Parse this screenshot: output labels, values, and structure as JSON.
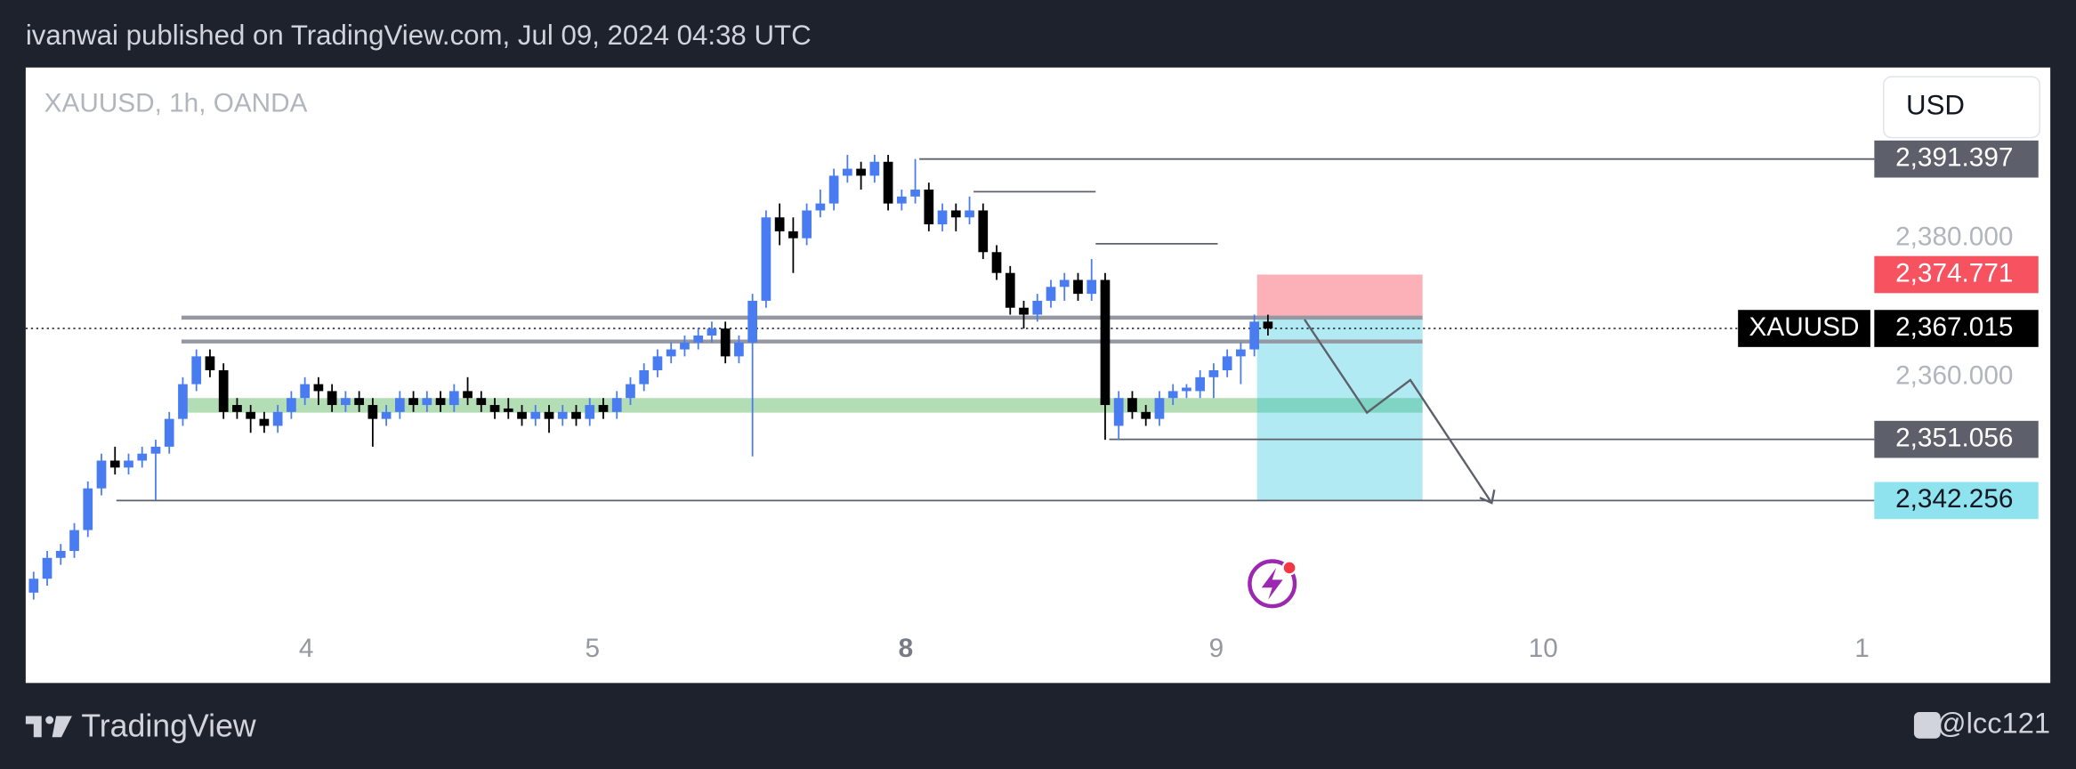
{
  "header": {
    "text": "ivanwai published on TradingView.com, Jul 09, 2024 04:38 UTC"
  },
  "footer": {
    "brand": "TradingView",
    "author": "@lcc121"
  },
  "chart_data": {
    "type": "candlestick",
    "title": "XAUUSD, 1h, OANDA",
    "currency": "USD",
    "up_color": "#4a7cf1",
    "down_color": "#000000",
    "grid": false,
    "xlim": [
      -0.585,
      135.61
    ],
    "ylim": [
      2324.76,
      2404.57
    ],
    "xticks": [
      {
        "value": 20.1,
        "label": "4"
      },
      {
        "value": 41.2,
        "label": "5"
      },
      {
        "value": 64.3,
        "label": "8"
      },
      {
        "value": 87.2,
        "label": "9"
      },
      {
        "value": 111.3,
        "label": "10"
      },
      {
        "value": 134.8,
        "label": "1"
      }
    ],
    "yticks": [
      {
        "value": 2380,
        "label": "2,380.000"
      },
      {
        "value": 2360,
        "label": "2,360.000"
      }
    ],
    "open": [
      2329,
      2331,
      2334,
      2335,
      2338,
      2344,
      2348,
      2347,
      2348,
      2349,
      2350,
      2354,
      2359,
      2363,
      2361,
      2356,
      2355,
      2354,
      2353,
      2355,
      2357,
      2359,
      2358,
      2356,
      2357,
      2356,
      2354,
      2355,
      2357,
      2356,
      2357,
      2356,
      2358,
      2357,
      2356,
      2355.5,
      2355,
      2354,
      2355,
      2354,
      2355,
      2354,
      2356,
      2355,
      2357,
      2359,
      2361,
      2363,
      2364,
      2365,
      2366,
      2367,
      2363,
      2365,
      2371,
      2383,
      2381,
      2380,
      2384,
      2385,
      2389,
      2390,
      2389,
      2391,
      2385,
      2386,
      2387,
      2382,
      2384,
      2383,
      2384,
      2378,
      2375,
      2370,
      2369,
      2371,
      2373,
      2374,
      2372,
      2374,
      2353,
      2357,
      2355,
      2354,
      2357,
      2358,
      2358,
      2360,
      2361,
      2363,
      2364,
      2368
    ],
    "high": [
      2332,
      2335,
      2336,
      2339,
      2345,
      2349,
      2350,
      2349,
      2350,
      2351,
      2355,
      2360,
      2364,
      2364,
      2362,
      2357,
      2356,
      2355,
      2356,
      2358,
      2360,
      2360,
      2359,
      2358,
      2358,
      2357,
      2356,
      2358,
      2358,
      2358,
      2358,
      2359,
      2360,
      2358,
      2357,
      2357,
      2356,
      2356,
      2356,
      2356,
      2356,
      2357,
      2357,
      2358,
      2360,
      2362,
      2364,
      2365,
      2366,
      2367,
      2368,
      2368,
      2366,
      2372,
      2384,
      2385,
      2383,
      2385,
      2387,
      2390,
      2392,
      2391,
      2392,
      2392,
      2387,
      2391.4,
      2388,
      2385,
      2385,
      2386,
      2385,
      2379,
      2376,
      2371,
      2372,
      2374,
      2375,
      2375,
      2377,
      2375,
      2358,
      2358,
      2356,
      2358,
      2359,
      2359,
      2361,
      2362,
      2364,
      2365,
      2369,
      2369
    ],
    "low": [
      2328,
      2330,
      2333,
      2334,
      2337,
      2343,
      2346,
      2346,
      2347,
      2342.3,
      2349,
      2353,
      2358,
      2360,
      2354,
      2354,
      2352,
      2352,
      2352,
      2354,
      2356,
      2356,
      2355,
      2355,
      2355,
      2350,
      2353,
      2354,
      2355,
      2355,
      2355,
      2355,
      2356,
      2355,
      2354,
      2354,
      2353,
      2353,
      2352,
      2353,
      2353,
      2353,
      2354,
      2354,
      2356,
      2358,
      2360,
      2362,
      2363,
      2364,
      2365,
      2362,
      2362,
      2348.6,
      2370,
      2379,
      2375,
      2379,
      2383,
      2384,
      2388,
      2387,
      2388,
      2384,
      2384,
      2385,
      2381,
      2381,
      2381,
      2382,
      2377,
      2374,
      2369,
      2367,
      2368,
      2370,
      2371,
      2371,
      2371,
      2351,
      2351,
      2354,
      2353,
      2353,
      2356,
      2357,
      2357,
      2357,
      2360,
      2359,
      2363,
      2366
    ],
    "close": [
      2331,
      2334,
      2335,
      2338,
      2344,
      2348,
      2347,
      2348,
      2349,
      2350,
      2354,
      2359,
      2363,
      2361,
      2355,
      2355,
      2354,
      2353,
      2355,
      2357,
      2359,
      2358,
      2356,
      2357,
      2356,
      2354,
      2355,
      2357,
      2356,
      2357,
      2356,
      2358,
      2357,
      2356,
      2355,
      2355,
      2354,
      2355,
      2354,
      2355,
      2354,
      2356,
      2355,
      2357,
      2359,
      2361,
      2363,
      2364,
      2365,
      2366,
      2367,
      2363,
      2365,
      2371,
      2383,
      2381,
      2380,
      2384,
      2385,
      2389,
      2390,
      2389,
      2391,
      2385,
      2386,
      2387,
      2382,
      2384,
      2383,
      2384,
      2378,
      2375,
      2370,
      2369,
      2371,
      2373,
      2374,
      2372,
      2374,
      2356,
      2357,
      2355,
      2354,
      2357,
      2358,
      2358.5,
      2360,
      2361,
      2363,
      2364,
      2368,
      2367.015
    ],
    "last_price": {
      "value": 2367.015,
      "label": "2,367.015",
      "name": "XAUUSD"
    },
    "levels": [
      {
        "value": 2391.397,
        "label": "2,391.397",
        "from": 65.3
      },
      {
        "value": 2351.056,
        "label": "2,351.056",
        "from": 79.3
      },
      {
        "value": 2342.256,
        "label": "2,342.256",
        "from": 6.1
      }
    ],
    "segments": [
      {
        "value": 2386.7,
        "x": [
          69.3,
          78.3
        ]
      },
      {
        "value": 2379.2,
        "x": [
          78.3,
          87.3
        ]
      }
    ],
    "zones": [
      {
        "value": 2368.57,
        "x": [
          10.9,
          102.4
        ]
      },
      {
        "value": 2365.14,
        "x": [
          10.9,
          102.4
        ]
      }
    ],
    "demand_zone": {
      "range": [
        2354.9,
        2357
      ],
      "x": [
        11.2,
        102.4
      ]
    },
    "position": {
      "entry": 2368.57,
      "stop": {
        "value": 2374.771,
        "label": "2,374.771"
      },
      "target": 2342.256,
      "x": [
        90.2,
        102.4
      ]
    },
    "projection": {
      "x": [
        93.7,
        98.3,
        101.5,
        107.5
      ],
      "y": [
        2368.3,
        2354.9,
        2359.6,
        2341.9
      ]
    }
  }
}
